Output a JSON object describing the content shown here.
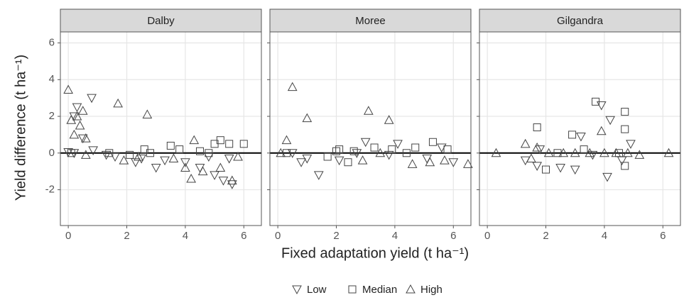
{
  "chart_data": {
    "type": "scatter",
    "x_label": "Fixed adaptation yield (t ha⁻¹)",
    "y_label": "Yield difference (t ha⁻¹)",
    "xlim": [
      -0.27,
      6.6
    ],
    "ylim": [
      -3.95,
      6.6
    ],
    "xticks": [
      0,
      2,
      4,
      6
    ],
    "yticks": [
      -2,
      0,
      2,
      4,
      6
    ],
    "grid": true,
    "legend": "bottom",
    "series": [
      {
        "name": "Low",
        "marker": "triangle-down",
        "color": "#444"
      },
      {
        "name": "Median",
        "marker": "square",
        "color": "#444"
      },
      {
        "name": "High",
        "marker": "triangle-up",
        "color": "#444"
      }
    ],
    "panels": [
      {
        "title": "Dalby",
        "series": [
          {
            "x": [
              0.3,
              0.8,
              0.2,
              0.5,
              0.85,
              1.3,
              1.6,
              2.3,
              2.5,
              3.0,
              4.0,
              4.5,
              5.0,
              5.3,
              5.6,
              5.5,
              0,
              0.2,
              3.3,
              4.8
            ],
            "values": [
              2.5,
              3.0,
              2.0,
              0.8,
              0.15,
              -0.1,
              -0.2,
              -0.5,
              -0.3,
              -0.8,
              -0.5,
              -0.8,
              -1.2,
              -1.5,
              -1.7,
              -0.3,
              0.05,
              0,
              -0.4,
              -0.2
            ]
          },
          {
            "x": [
              0.1,
              1.4,
              2.1,
              2.6,
              3.5,
              3.8,
              4.5,
              5.0,
              5.2,
              5.5,
              6.0,
              4.8,
              2.8
            ],
            "values": [
              0,
              0,
              -0.1,
              0.2,
              0.4,
              0.2,
              0.1,
              0.5,
              0.7,
              0.5,
              0.5,
              0,
              0
            ]
          },
          {
            "x": [
              0,
              1.7,
              2.7,
              0.1,
              0.5,
              0.2,
              0.4,
              0.6,
              0.3,
              4.3,
              4.2,
              5.6,
              4.0,
              3.6,
              5.2,
              4.6,
              2.4,
              1.9,
              5.8,
              0.6
            ],
            "values": [
              3.45,
              2.7,
              2.1,
              1.8,
              2.3,
              1.0,
              1.5,
              0.8,
              2.0,
              0.7,
              -1.4,
              -1.5,
              -0.8,
              -0.3,
              -0.8,
              -1.0,
              -0.2,
              -0.4,
              -0.2,
              -0.1
            ]
          }
        ]
      },
      {
        "title": "Moree",
        "series": [
          {
            "x": [
              0.5,
              0.8,
              1.4,
              2.1,
              3.0,
              3.8,
              4.1,
              5.1,
              5.6,
              6.0,
              1.0,
              2.7
            ],
            "values": [
              0,
              -0.5,
              -1.2,
              -0.4,
              0.6,
              -0.1,
              0.5,
              -0.3,
              0.3,
              -0.5,
              -0.3,
              0
            ]
          },
          {
            "x": [
              0.3,
              1.7,
              2.1,
              2.6,
              3.3,
              3.9,
              4.4,
              4.7,
              5.3,
              5.8,
              2.4,
              2.0
            ],
            "values": [
              0,
              -0.2,
              0.2,
              0.1,
              0.3,
              0.2,
              0,
              0.3,
              0.6,
              0.2,
              -0.5,
              0.1
            ]
          },
          {
            "x": [
              0.5,
              1.0,
              3.1,
              3.8,
              0.3,
              2.9,
              4.6,
              5.7,
              6.5,
              5.2,
              3.5,
              0.1
            ],
            "values": [
              3.6,
              1.9,
              2.3,
              1.8,
              0.7,
              -0.4,
              -0.6,
              -0.4,
              -0.6,
              -0.5,
              0,
              0
            ]
          }
        ]
      },
      {
        "title": "Gilgandra",
        "series": [
          {
            "x": [
              3.9,
              4.2,
              3.2,
              4.6,
              4.1,
              3.0,
              2.5,
              1.7,
              4.9,
              1.3,
              1.8,
              3.6
            ],
            "values": [
              2.6,
              1.8,
              0.9,
              -0.4,
              -1.3,
              -0.9,
              -0.8,
              -0.7,
              0.5,
              -0.4,
              0.2,
              -0.1
            ]
          },
          {
            "x": [
              3.7,
              4.7,
              4.7,
              1.7,
              2.9,
              2.0,
              4.7,
              3.3,
              4.5,
              2.4
            ],
            "values": [
              2.8,
              2.25,
              1.3,
              1.4,
              1.0,
              -0.9,
              -0.7,
              0.2,
              0,
              0
            ]
          },
          {
            "x": [
              0.3,
              3.9,
              1.3,
              6.2,
              1.7,
              2.1,
              2.6,
              3.0,
              3.5,
              4.0,
              4.4,
              4.8,
              5.2,
              1.5
            ],
            "values": [
              0,
              1.2,
              0.5,
              0,
              0.3,
              0,
              0,
              0,
              0,
              0,
              0,
              0,
              -0.1,
              -0.3
            ]
          }
        ]
      }
    ]
  }
}
